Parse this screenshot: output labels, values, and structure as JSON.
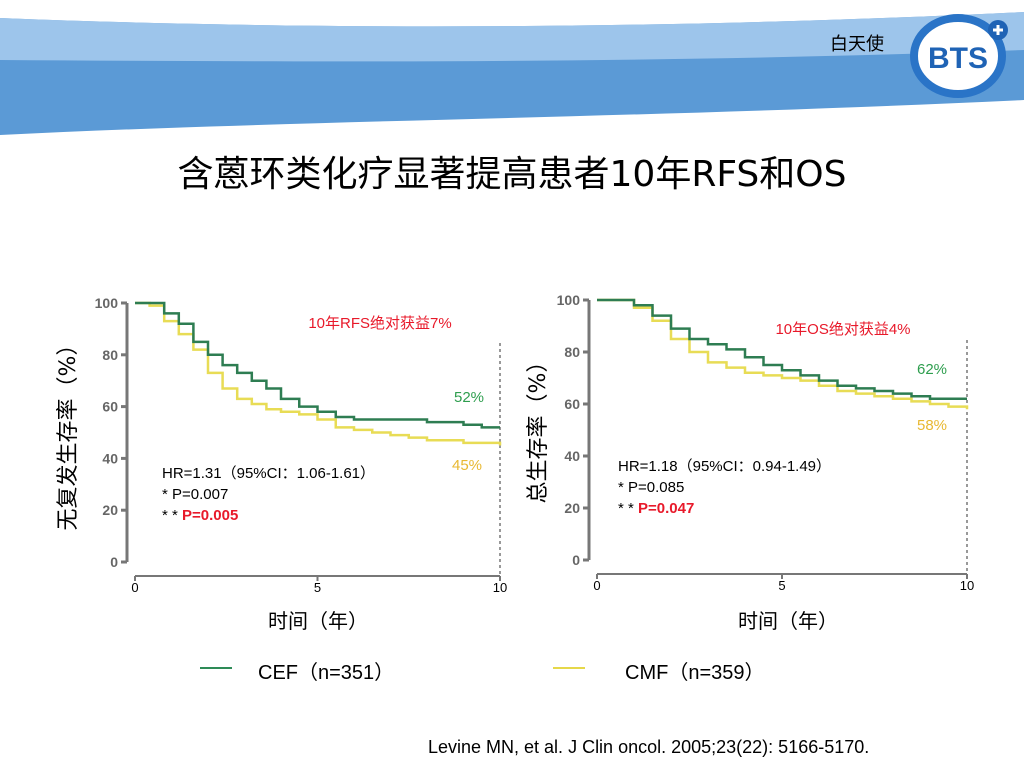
{
  "header": {
    "brand_text": "白天使",
    "logo_text": "BTS",
    "colors": {
      "band_dark": "#5b9ad6",
      "band_light": "#a9cdef"
    }
  },
  "title": "含蒽环类化疗显著提高患者10年RFS和OS",
  "legend": {
    "items": [
      {
        "label": "CEF（n=351）",
        "color": "#2e8b57"
      },
      {
        "label": "CMF（n=359）",
        "color": "#e6d84a"
      }
    ]
  },
  "citation": "Levine MN, et al. J Clin oncol. 2005;23(22): 5166-5170.",
  "chart_data": [
    {
      "type": "line",
      "ylabel": "无复发生存率（%）",
      "xlabel": "时间（年）",
      "xlim": [
        0,
        10
      ],
      "ylim": [
        0,
        100
      ],
      "x_ticks": [
        "0",
        "5",
        "10"
      ],
      "y_ticks": [
        "0",
        "20",
        "40",
        "60",
        "80",
        "100"
      ],
      "annotation_title": "10年RFS绝对获益7%",
      "stats": [
        "HR=1.31（95%CI：1.06-1.61）",
        "* P=0.007",
        "* * "
      ],
      "stats_emph": "P=0.005",
      "series": [
        {
          "name": "CEF",
          "color": "#2e7d52",
          "end_label": "52%",
          "end_label_color": "#2e9e4e",
          "x": [
            0,
            0.4,
            0.8,
            1.2,
            1.6,
            2.0,
            2.4,
            2.8,
            3.2,
            3.6,
            4.0,
            4.5,
            5.0,
            5.5,
            6.0,
            6.5,
            7.0,
            7.5,
            8.0,
            8.5,
            9.0,
            9.5,
            10.0
          ],
          "y": [
            100,
            100,
            96,
            92,
            85,
            80,
            76,
            73,
            70,
            67,
            63,
            60,
            58,
            56,
            55,
            55,
            55,
            55,
            54,
            54,
            53,
            52,
            52
          ]
        },
        {
          "name": "CMF",
          "color": "#e8dc55",
          "end_label": "45%",
          "end_label_color": "#e8b832",
          "x": [
            0,
            0.4,
            0.8,
            1.2,
            1.6,
            2.0,
            2.4,
            2.8,
            3.2,
            3.6,
            4.0,
            4.5,
            5.0,
            5.5,
            6.0,
            6.5,
            7.0,
            7.5,
            8.0,
            8.5,
            9.0,
            9.5,
            10.0
          ],
          "y": [
            100,
            99,
            93,
            88,
            82,
            73,
            67,
            63,
            61,
            59,
            58,
            57,
            55,
            52,
            51,
            50,
            49,
            48,
            47,
            47,
            46,
            46,
            45
          ]
        }
      ]
    },
    {
      "type": "line",
      "ylabel": "总生存率（%）",
      "xlabel": "时间（年）",
      "xlim": [
        0,
        10
      ],
      "ylim": [
        0,
        100
      ],
      "x_ticks": [
        "0",
        "5",
        "10"
      ],
      "y_ticks": [
        "0",
        "20",
        "40",
        "60",
        "80",
        "100"
      ],
      "annotation_title": "10年OS绝对获益4%",
      "stats": [
        "HR=1.18（95%CI：0.94-1.49）",
        "* P=0.085",
        "* * "
      ],
      "stats_emph": "P=0.047",
      "series": [
        {
          "name": "CEF",
          "color": "#2e7d52",
          "end_label": "62%",
          "end_label_color": "#2e9e4e",
          "x": [
            0,
            0.5,
            1.0,
            1.5,
            2.0,
            2.5,
            3.0,
            3.5,
            4.0,
            4.5,
            5.0,
            5.5,
            6.0,
            6.5,
            7.0,
            7.5,
            8.0,
            8.5,
            9.0,
            9.5,
            10.0
          ],
          "y": [
            100,
            100,
            98,
            94,
            89,
            85,
            83,
            81,
            78,
            75,
            73,
            71,
            69,
            67,
            66,
            65,
            64,
            63,
            62,
            62,
            62
          ]
        },
        {
          "name": "CMF",
          "color": "#e8dc55",
          "end_label": "58%",
          "end_label_color": "#e8b832",
          "x": [
            0,
            0.5,
            1.0,
            1.5,
            2.0,
            2.5,
            3.0,
            3.5,
            4.0,
            4.5,
            5.0,
            5.5,
            6.0,
            6.5,
            7.0,
            7.5,
            8.0,
            8.5,
            9.0,
            9.5,
            10.0
          ],
          "y": [
            100,
            100,
            97,
            92,
            85,
            80,
            76,
            74,
            72,
            71,
            70,
            69,
            67,
            65,
            64,
            63,
            62,
            61,
            60,
            59,
            58
          ]
        }
      ]
    }
  ]
}
